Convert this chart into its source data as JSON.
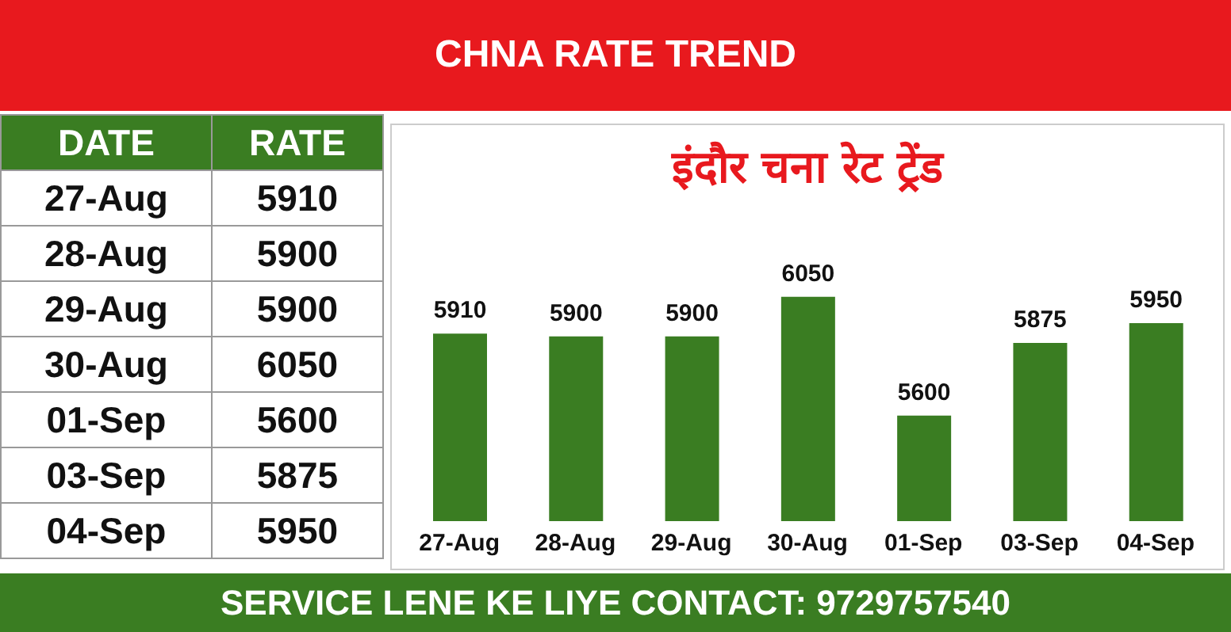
{
  "chart_data": [
    {
      "type": "other",
      "title": "CHNA RATE TREND",
      "annotations": [
        "DATE",
        "RATE"
      ],
      "categories": [
        "27-Aug",
        "28-Aug",
        "29-Aug",
        "30-Aug",
        "01-Sep",
        "03-Sep",
        "04-Sep"
      ],
      "values": [
        5910,
        5900,
        5900,
        6050,
        5600,
        5875,
        5950
      ],
      "data_labels": true
    },
    {
      "type": "bar",
      "subtitle": "इंदौर चना रेट ट्रेंड",
      "categories": [
        "27-Aug",
        "28-Aug",
        "29-Aug",
        "30-Aug",
        "01-Sep",
        "03-Sep",
        "04-Sep"
      ],
      "values": [
        5910,
        5900,
        5900,
        6050,
        5600,
        5875,
        5950
      ],
      "color": "#3a7d22",
      "ylim": [
        5200,
        6700
      ],
      "data_labels": true,
      "tick_labels": "x",
      "annotations": [
        "SERVICE LENE KE LIYE CONTACT: 9729757540"
      ]
    }
  ]
}
